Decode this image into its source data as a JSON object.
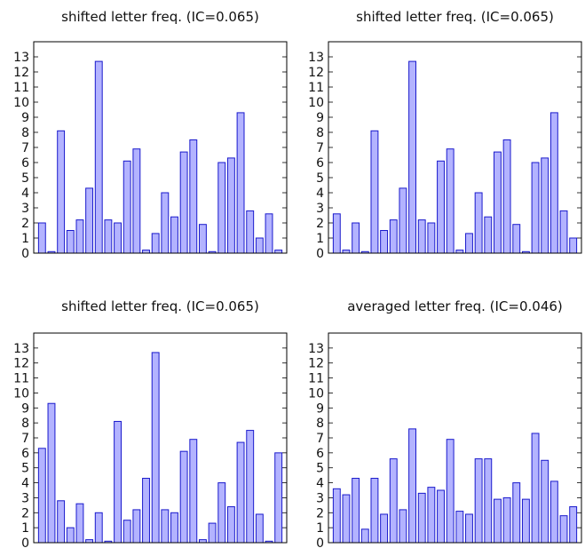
{
  "chart_data": [
    {
      "type": "bar",
      "title": "shifted letter freq.  (IC=0.065)",
      "ylim": [
        0,
        14
      ],
      "yticks": [
        0,
        1,
        2,
        3,
        4,
        5,
        6,
        7,
        8,
        9,
        10,
        11,
        12,
        13
      ],
      "values": [
        2.0,
        0.1,
        8.1,
        1.5,
        2.2,
        4.3,
        12.7,
        2.2,
        2.0,
        6.1,
        6.9,
        0.2,
        1.3,
        4.0,
        2.4,
        6.7,
        7.5,
        1.9,
        0.1,
        6.0,
        6.3,
        9.3,
        2.8,
        1.0,
        2.6,
        0.2
      ]
    },
    {
      "type": "bar",
      "title": "shifted letter freq.  (IC=0.065)",
      "ylim": [
        0,
        14
      ],
      "yticks": [
        0,
        1,
        2,
        3,
        4,
        5,
        6,
        7,
        8,
        9,
        10,
        11,
        12,
        13
      ],
      "values": [
        2.6,
        0.2,
        2.0,
        0.1,
        8.1,
        1.5,
        2.2,
        4.3,
        12.7,
        2.2,
        2.0,
        6.1,
        6.9,
        0.2,
        1.3,
        4.0,
        2.4,
        6.7,
        7.5,
        1.9,
        0.1,
        6.0,
        6.3,
        9.3,
        2.8,
        1.0
      ]
    },
    {
      "type": "bar",
      "title": "shifted letter freq.  (IC=0.065)",
      "ylim": [
        0,
        14
      ],
      "yticks": [
        0,
        1,
        2,
        3,
        4,
        5,
        6,
        7,
        8,
        9,
        10,
        11,
        12,
        13
      ],
      "values": [
        6.3,
        9.3,
        2.8,
        1.0,
        2.6,
        0.2,
        2.0,
        0.1,
        8.1,
        1.5,
        2.2,
        4.3,
        12.7,
        2.2,
        2.0,
        6.1,
        6.9,
        0.2,
        1.3,
        4.0,
        2.4,
        6.7,
        7.5,
        1.9,
        0.1,
        6.0
      ]
    },
    {
      "type": "bar",
      "title": "averaged letter freq.  (IC=0.046)",
      "ylim": [
        0,
        14
      ],
      "yticks": [
        0,
        1,
        2,
        3,
        4,
        5,
        6,
        7,
        8,
        9,
        10,
        11,
        12,
        13
      ],
      "values": [
        3.6,
        3.2,
        4.3,
        0.9,
        4.3,
        1.9,
        5.6,
        2.2,
        7.6,
        3.3,
        3.7,
        3.5,
        6.9,
        2.1,
        1.9,
        5.6,
        5.6,
        2.9,
        3.0,
        4.0,
        2.9,
        7.3,
        5.5,
        4.1,
        1.8,
        2.4
      ]
    }
  ]
}
